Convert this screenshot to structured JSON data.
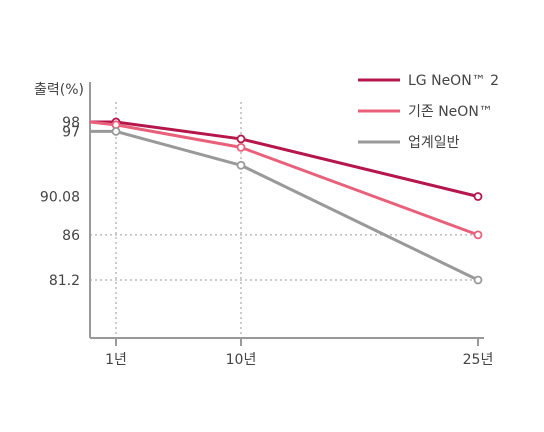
{
  "chart_data": {
    "type": "line",
    "ylabel": "출력(%)",
    "x": [
      "1년",
      "10년",
      "25년"
    ],
    "series": [
      {
        "name": "LG NeON™ 2",
        "color": "#b5174b",
        "start": 98,
        "values": [
          98,
          96.2,
          90.08
        ]
      },
      {
        "name": "기존 NeON™",
        "color": "#e8607a",
        "start": 98,
        "values": [
          97.7,
          95.3,
          86
        ]
      },
      {
        "name": "업계일반",
        "color": "#999999",
        "start": 97,
        "values": [
          97,
          93.4,
          81.2
        ]
      }
    ],
    "y_tick_labels": [
      98,
      97,
      90.08,
      86,
      81.2
    ],
    "ylim": [
      75,
      101
    ],
    "reference_lines": [
      {
        "axis": "x",
        "at": "1년"
      },
      {
        "axis": "x",
        "at": "10년"
      },
      {
        "axis": "y",
        "value": 86
      },
      {
        "axis": "y",
        "value": 81.2
      }
    ],
    "legend_position": "top-right"
  }
}
